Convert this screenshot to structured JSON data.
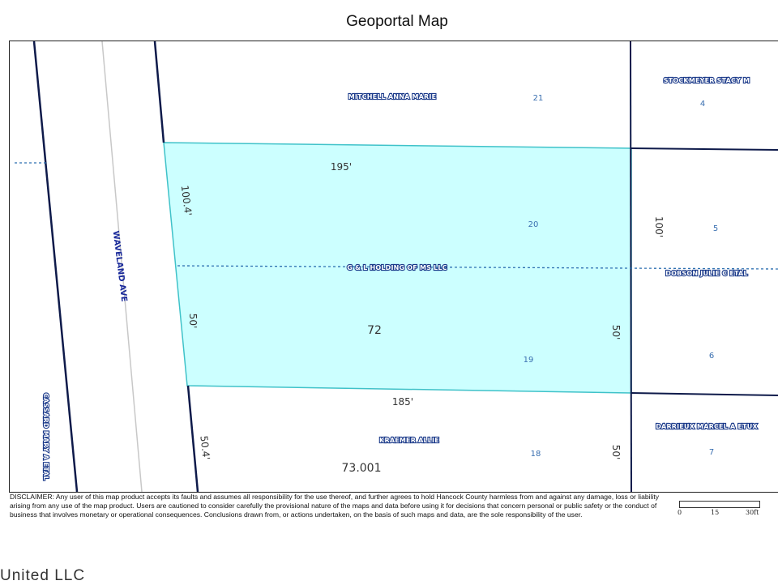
{
  "title": "Geoportal Map",
  "map": {
    "road_label": "WAVELAND AVE",
    "owners": {
      "mitchell": "MITCHELL ANNA MARIE",
      "stockmeyer": "STOCKMEYER STACY M",
      "gl_holding": "G & L HOLDING OF MS LLC",
      "dobson": "DOBSON JULIE C ETAL",
      "kraemer": "KRAEMER ALLIE",
      "darrieux": "DARRIEUX MARCEL A ETUX",
      "cassard": "CASSARD MARY A ETAL"
    },
    "lots": {
      "l21": "21",
      "l4": "4",
      "l20": "20",
      "l5": "5",
      "l19": "19",
      "l6": "6",
      "l18": "18",
      "l7": "7"
    },
    "dimensions": {
      "top": "195'",
      "bottom": "185'",
      "left_upper": "100.4'",
      "left_lower": "50'",
      "right_upper": "100'",
      "right_lower": "50'",
      "left_bottom": "50.4'",
      "right_bottom": "50'"
    },
    "parcels": {
      "selected": "72",
      "south": "73.001"
    },
    "colors": {
      "selected_fill": "#ccffff",
      "selected_stroke": "#3fc2c9",
      "lines": "#0e1a4a",
      "owner_text": "#1b3a8a"
    }
  },
  "disclaimer": "DISCLAIMER: Any user of this map product accepts its faults and assumes all responsibility for the use thereof, and further agrees to hold Hancock County harmless from and against any damage, loss or liability arising from any use of the map product. Users are cautioned to consider carefully the provisional nature of the maps and data before using it for decisions that concern personal or public safety or the conduct of business that involves monetary or operational consequences. Conclusions drawn from, or actions undertaken, on the basis of such maps and data, are the sole responsibility of the user.",
  "scale": {
    "labels": [
      "0",
      "15",
      "30ft"
    ]
  },
  "watermark": "United LLC"
}
